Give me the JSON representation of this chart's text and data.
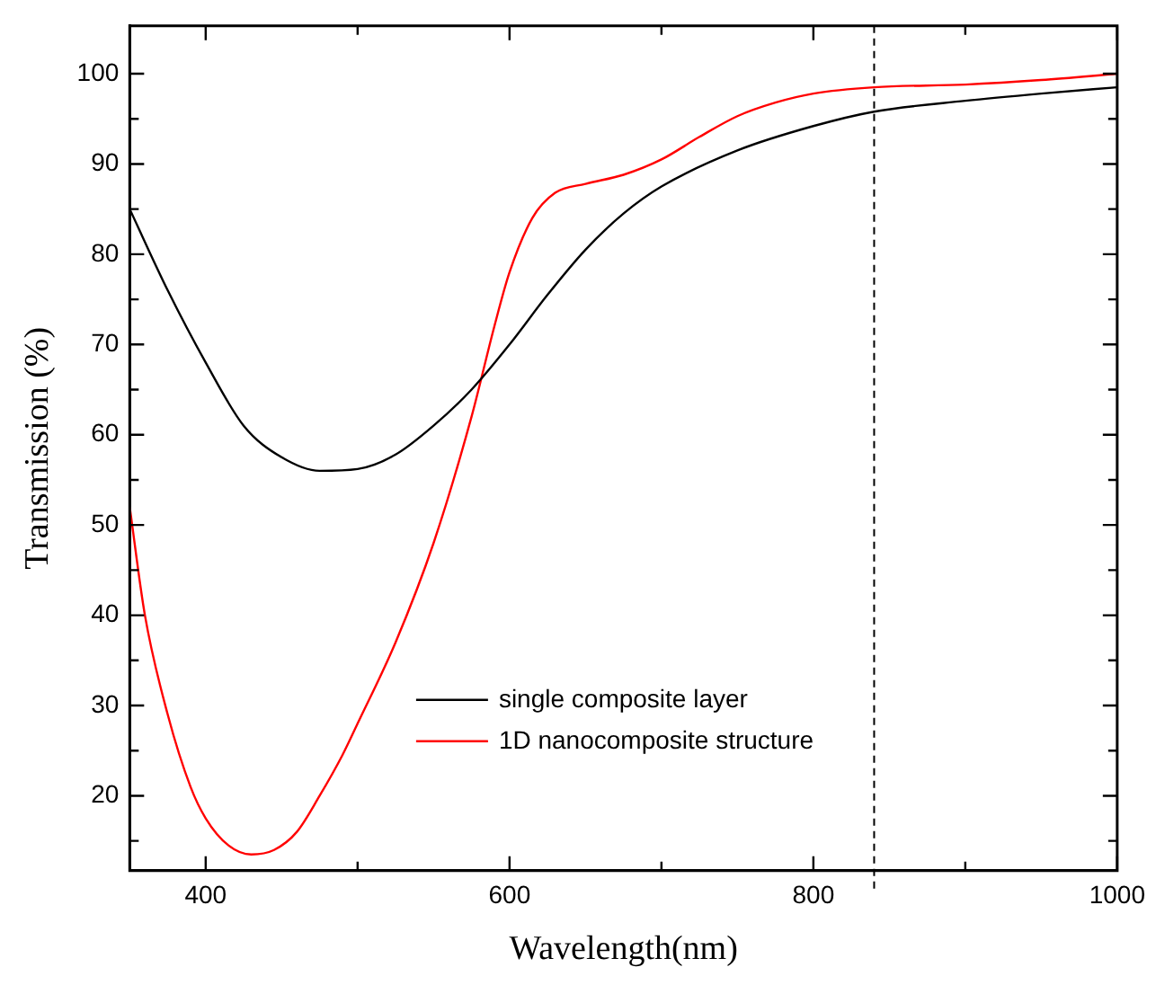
{
  "chart_data": {
    "type": "line",
    "xlabel": "Wavelength(nm)",
    "ylabel": "Transmission (%)",
    "xlim": [
      350,
      1000
    ],
    "ylim": [
      11.7,
      105.3
    ],
    "xticks": [
      400,
      {
        "value": 500,
        "label": null
      },
      600,
      {
        "value": 700,
        "label": null
      },
      800,
      {
        "value": 900,
        "label": null
      },
      1000
    ],
    "yticks": [
      {
        "value": 15,
        "label": null
      },
      20,
      {
        "value": 25,
        "label": null
      },
      30,
      {
        "value": 35,
        "label": null
      },
      40,
      {
        "value": 45,
        "label": null
      },
      50,
      {
        "value": 55,
        "label": null
      },
      60,
      {
        "value": 65,
        "label": null
      },
      70,
      {
        "value": 75,
        "label": null
      },
      80,
      {
        "value": 85,
        "label": null
      },
      90,
      {
        "value": 95,
        "label": null
      },
      100
    ],
    "grid": false,
    "legend": "bottom",
    "marker": "none",
    "line_style": "solid",
    "ref_lines": [
      {
        "axis": "x",
        "value": 840,
        "line_style": "dashed",
        "color": "#000000"
      }
    ],
    "series": [
      {
        "name": "single composite layer",
        "color": "#000000",
        "x": [
          350,
          375,
          400,
          425,
          450,
          475,
          500,
          525,
          550,
          575,
          600,
          625,
          650,
          675,
          700,
          750,
          800,
          840,
          900,
          950,
          1000
        ],
        "values": [
          85,
          76,
          68,
          61,
          57.5,
          56,
          56.2,
          57.8,
          61,
          65,
          70,
          75.5,
          80.5,
          84.5,
          87.5,
          91.5,
          94.2,
          95.8,
          97,
          97.8,
          98.5
        ]
      },
      {
        "name": "1D nanocomposite structure",
        "color": "#ff0000",
        "x": [
          350,
          360,
          375,
          390,
          400,
          415,
          430,
          445,
          460,
          475,
          490,
          500,
          525,
          550,
          575,
          590,
          600,
          615,
          630,
          650,
          675,
          700,
          725,
          750,
          775,
          800,
          840,
          900,
          950,
          1000
        ],
        "values": [
          52,
          40,
          29,
          21,
          17.5,
          14.5,
          13.5,
          14,
          16,
          20,
          24.5,
          28,
          37,
          48,
          62,
          72,
          78,
          84,
          86.8,
          87.8,
          88.8,
          90.5,
          93,
          95.3,
          96.8,
          97.8,
          98.5,
          98.8,
          99.3,
          100
        ]
      }
    ]
  }
}
